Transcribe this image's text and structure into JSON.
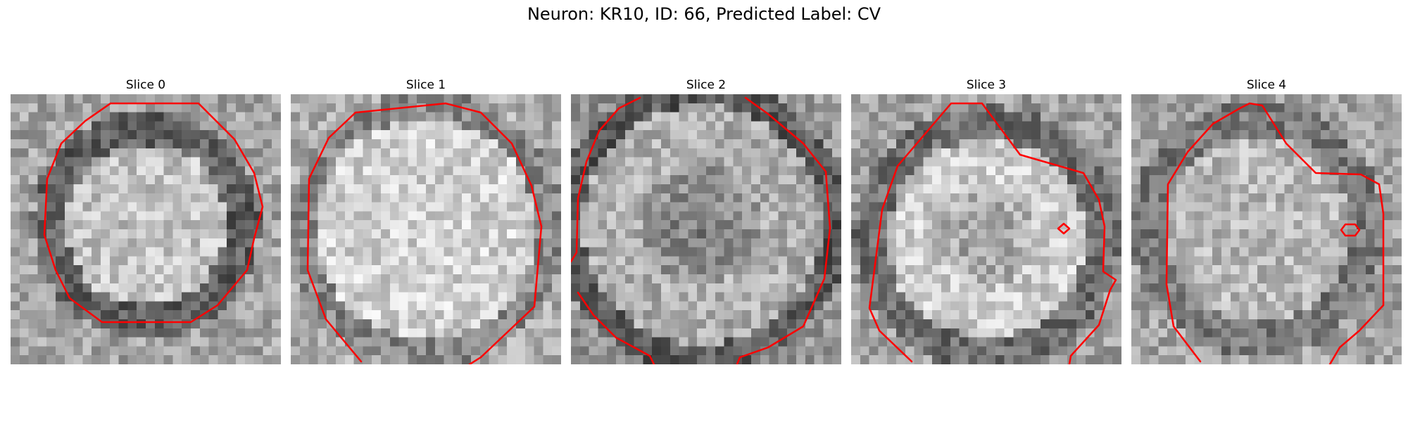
{
  "figure": {
    "title": "Neuron: KR10, ID: 66, Predicted Label: CV"
  },
  "colors": {
    "contour": "#ff0000",
    "background": "#ffffff"
  },
  "panels": [
    {
      "title": "Slice 0"
    },
    {
      "title": "Slice 1"
    },
    {
      "title": "Slice 2"
    },
    {
      "title": "Slice 3"
    },
    {
      "title": "Slice 4"
    }
  ]
}
